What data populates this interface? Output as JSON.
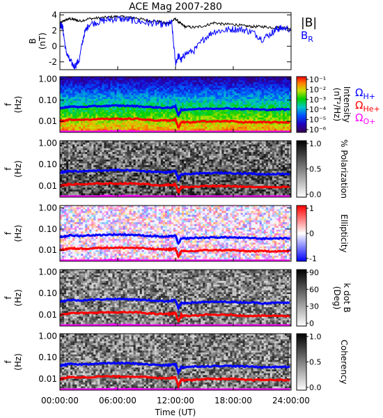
{
  "chart_data": {
    "title": "ACE Mag 2007-280",
    "xlabel": "Time (UT)",
    "x_ticks": [
      "00:00:00",
      "06:00:00",
      "12:00:00",
      "18:00:00",
      "24:00:00"
    ],
    "x_range_hours": [
      0,
      24
    ],
    "panels": [
      {
        "type": "line",
        "ylabel": [
          "B",
          "(nT)"
        ],
        "ylim": [
          -3,
          4.3
        ],
        "y_ticks": [
          4,
          2,
          0,
          -2
        ],
        "legend": [
          "|B|",
          "B_R"
        ],
        "colors": {
          "absB": "#000000",
          "BR": "#0000ff"
        },
        "series": [
          {
            "name": "|B|",
            "x": [
              0,
              0.5,
              1,
              1.5,
              2,
              3,
              4,
              5,
              6,
              7,
              8,
              9,
              10,
              11,
              11.5,
              12,
              12.5,
              13,
              14,
              15,
              16,
              17,
              18,
              19,
              20,
              21,
              22,
              23,
              24
            ],
            "values": [
              2.9,
              3.3,
              3.5,
              3.4,
              3.2,
              3.5,
              3.6,
              3.7,
              3.8,
              3.7,
              3.6,
              3.3,
              3.2,
              2.9,
              3.1,
              3.5,
              2.9,
              2.5,
              2.4,
              2.6,
              3.0,
              2.8,
              2.8,
              2.6,
              2.5,
              2.5,
              2.4,
              2.4,
              2.3
            ]
          },
          {
            "name": "B_R",
            "x": [
              0,
              0.3,
              0.6,
              1,
              1.5,
              2,
              2.5,
              3,
              4,
              5,
              6,
              7,
              8,
              9,
              10,
              11,
              11.6,
              12,
              12.3,
              12.6,
              13,
              14,
              15,
              16,
              17,
              18,
              19,
              20,
              21,
              22,
              22.5,
              23,
              24
            ],
            "values": [
              2.8,
              2.4,
              -0.5,
              -1.8,
              -2.6,
              -1.8,
              1.5,
              2.8,
              3.1,
              3.4,
              3.5,
              3.4,
              3.2,
              3.0,
              2.9,
              2.7,
              3.0,
              -2.2,
              -1.2,
              -1.8,
              -1.0,
              -0.5,
              1.0,
              1.9,
              2.0,
              2.2,
              2.1,
              1.8,
              0.9,
              1.7,
              2.2,
              2.3,
              2.2
            ]
          }
        ]
      },
      {
        "type": "heatmap",
        "ylabel": [
          "f",
          "(Hz)"
        ],
        "y_scale": "log",
        "ylim": [
          0.003,
          1.3
        ],
        "y_ticks": [
          "1.00",
          "0.10",
          "0.01"
        ],
        "colorbar": {
          "label": [
            "Intensity",
            "(nT²/Hz)"
          ],
          "ticks": [
            "10⁻¹",
            "10⁻²",
            "10⁻³",
            "10⁻⁴",
            "10⁻⁵",
            "10⁻⁶"
          ],
          "scale": "rainbow"
        }
      },
      {
        "type": "heatmap",
        "ylabel": [
          "f",
          "(Hz)"
        ],
        "y_scale": "log",
        "ylim": [
          0.003,
          1.3
        ],
        "y_ticks": [
          "1.00",
          "0.10",
          "0.01"
        ],
        "colorbar": {
          "label": [
            "% Polarization"
          ],
          "ticks": [
            "1.0",
            "0.5",
            "0.0"
          ],
          "scale": "gray"
        }
      },
      {
        "type": "heatmap",
        "ylabel": [
          "f",
          "(Hz)"
        ],
        "y_scale": "log",
        "ylim": [
          0.003,
          1.3
        ],
        "y_ticks": [
          "1.00",
          "0.10",
          "0.01"
        ],
        "colorbar": {
          "label": [
            "Ellipticity"
          ],
          "ticks": [
            "1",
            "0",
            "-1"
          ],
          "scale": "bwr"
        }
      },
      {
        "type": "heatmap",
        "ylabel": [
          "f",
          "(Hz)"
        ],
        "y_scale": "log",
        "ylim": [
          0.003,
          1.3
        ],
        "y_ticks": [
          "1.00",
          "0.10",
          "0.01"
        ],
        "colorbar": {
          "label": [
            "k dot B",
            "(Deg)"
          ],
          "ticks": [
            "90",
            "60",
            "30",
            "0"
          ],
          "scale": "gray"
        }
      },
      {
        "type": "heatmap",
        "ylabel": [
          "f",
          "(Hz)"
        ],
        "y_scale": "log",
        "ylim": [
          0.003,
          1.3
        ],
        "y_ticks": [
          "1.00",
          "0.10",
          "0.01"
        ],
        "colorbar": {
          "label": [
            "Coherency"
          ],
          "ticks": [
            "1.0",
            "0.5",
            "0.0"
          ],
          "scale": "gray"
        }
      }
    ],
    "gyrofrequency_legend": [
      {
        "label": "ΩH+",
        "color": "#0000ff"
      },
      {
        "label": "ΩHe+",
        "color": "#ff0000"
      },
      {
        "label": "ΩO+",
        "color": "#ff00ff"
      }
    ],
    "gyrofrequency_lines": {
      "x": [
        0,
        0.5,
        1,
        2,
        3,
        4,
        5,
        6,
        7,
        8,
        9,
        10,
        11,
        11.5,
        12,
        12.3,
        12.6,
        13,
        14,
        15,
        16,
        17,
        18,
        19,
        20,
        21,
        22,
        23,
        24
      ],
      "H+": [
        0.042,
        0.045,
        0.05,
        0.047,
        0.05,
        0.052,
        0.054,
        0.055,
        0.054,
        0.052,
        0.048,
        0.046,
        0.043,
        0.045,
        0.05,
        0.02,
        0.035,
        0.036,
        0.038,
        0.039,
        0.04,
        0.041,
        0.04,
        0.038,
        0.038,
        0.035,
        0.036,
        0.037,
        0.036
      ],
      "He+": [
        0.01,
        0.011,
        0.012,
        0.012,
        0.012,
        0.013,
        0.013,
        0.013,
        0.013,
        0.013,
        0.012,
        0.011,
        0.011,
        0.011,
        0.012,
        0.005,
        0.009,
        0.009,
        0.009,
        0.01,
        0.01,
        0.01,
        0.01,
        0.009,
        0.009,
        0.009,
        0.009,
        0.009,
        0.009
      ],
      "O+": [
        0.0027,
        0.0028,
        0.003,
        0.003,
        0.003,
        0.0032,
        0.0033,
        0.0034,
        0.0033,
        0.0033,
        0.003,
        0.0029,
        0.0028,
        0.0028,
        0.003,
        0.0013,
        0.0023,
        0.0023,
        0.0024,
        0.0024,
        0.0025,
        0.0025,
        0.0025,
        0.0024,
        0.0023,
        0.0023,
        0.0023,
        0.0023,
        0.0023
      ]
    }
  }
}
